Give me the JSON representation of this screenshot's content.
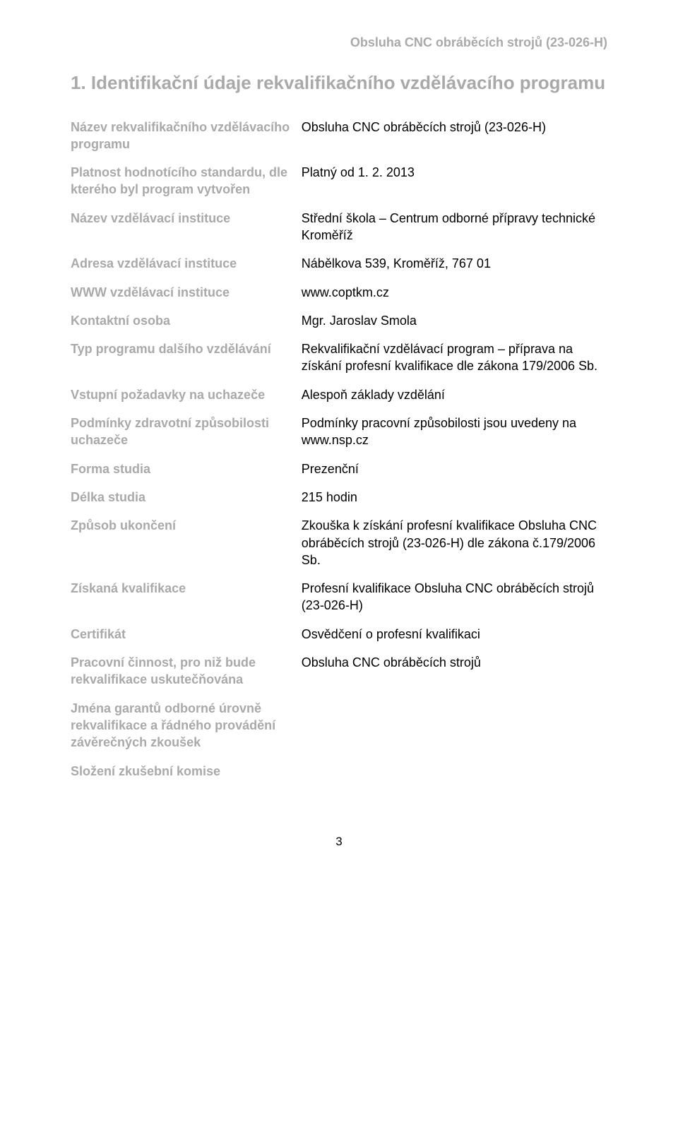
{
  "header": {
    "topRight": "Obsluha CNC obráběcích strojů (23-026-H)"
  },
  "section": {
    "heading": "1. Identifikační údaje rekvalifikačního vzdělávacího programu"
  },
  "rows": [
    {
      "label": "Název rekvalifikačního vzdělávacího programu",
      "value": "Obsluha CNC obráběcích strojů (23-026-H)"
    },
    {
      "label": "Platnost hodnotícího standardu, dle kterého byl program vytvořen",
      "value": "Platný od 1. 2. 2013"
    },
    {
      "label": "Název vzdělávací instituce",
      "value": "Střední škola – Centrum odborné přípravy technické Kroměříž"
    },
    {
      "label": "Adresa vzdělávací instituce",
      "value": "Nábělkova 539, Kroměříž, 767 01"
    },
    {
      "label": "WWW vzdělávací instituce",
      "value": "www.coptkm.cz"
    },
    {
      "label": "Kontaktní osoba",
      "value": "Mgr. Jaroslav Smola"
    },
    {
      "label": "Typ programu dalšího vzdělávání",
      "value": "Rekvalifikační vzdělávací program – příprava na získání profesní kvalifikace dle zákona 179/2006 Sb."
    },
    {
      "label": "Vstupní požadavky na uchazeče",
      "value": "Alespoň základy vzdělání"
    },
    {
      "label": "Podmínky zdravotní způsobilosti uchazeče",
      "value": "Podmínky pracovní způsobilosti jsou uvedeny na www.nsp.cz"
    },
    {
      "label": "Forma studia",
      "value": "Prezenční"
    },
    {
      "label": "Délka studia",
      "value": "215 hodin"
    },
    {
      "label": "Způsob ukončení",
      "value": "Zkouška k získání profesní kvalifikace Obsluha CNC obráběcích strojů (23-026-H) dle zákona č.179/2006 Sb."
    },
    {
      "label": "Získaná kvalifikace",
      "value": "Profesní kvalifikace Obsluha CNC obráběcích strojů (23-026-H)"
    },
    {
      "label": "Certifikát",
      "value": "Osvědčení o profesní kvalifikaci"
    },
    {
      "label": "Pracovní činnost, pro niž bude rekvalifikace uskutečňována",
      "value": "Obsluha CNC obráběcích strojů"
    },
    {
      "label": "Jména garantů odborné úrovně rekvalifikace a řádného provádění závěrečných zkoušek",
      "value": ""
    },
    {
      "label": "Složení zkušební komise",
      "value": ""
    }
  ],
  "footer": {
    "pageNumber": "3"
  },
  "style": {
    "labelColor": "#a9a9a9",
    "valueColor": "#000000",
    "background": "#ffffff",
    "headingFontSize": 26,
    "bodyFontSize": 18
  }
}
